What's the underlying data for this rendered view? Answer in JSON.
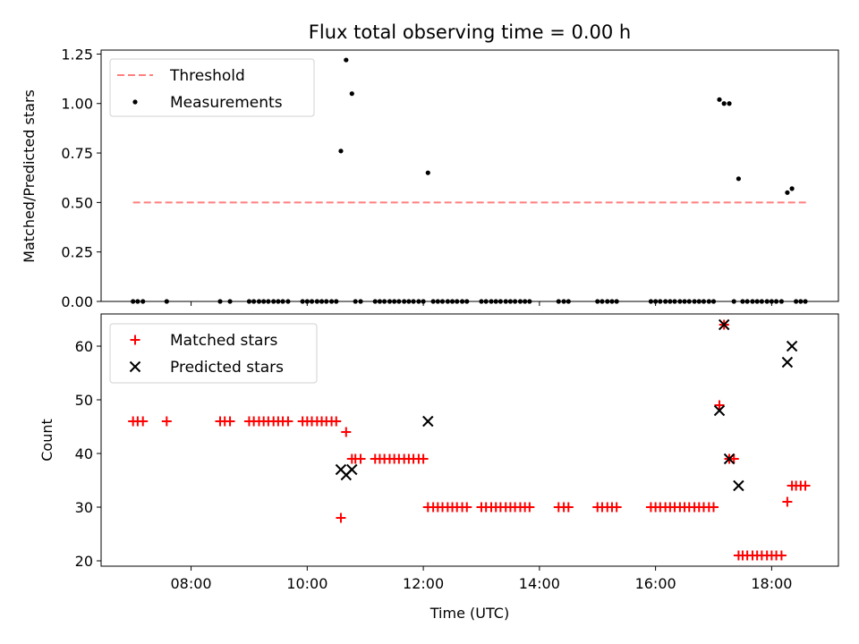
{
  "chart_data": [
    {
      "type": "scatter",
      "title": "Flux total observing time = 0.00 h",
      "ylabel": "Matched/Predicted stars",
      "ylim": [
        0,
        1.27
      ],
      "yticks": [
        0.0,
        0.25,
        0.5,
        0.75,
        1.0,
        1.25
      ],
      "ytick_labels": [
        "0.00",
        "0.25",
        "0.50",
        "0.75",
        "1.00",
        "1.25"
      ],
      "xlim_hours": [
        6.45,
        19.15
      ],
      "xticks_hours": [
        8,
        10,
        12,
        14,
        16,
        18
      ],
      "xtick_labels_shown": false,
      "legend": {
        "position": "upper-left",
        "entries": [
          "Threshold",
          "Measurements"
        ]
      },
      "threshold": {
        "name": "Threshold",
        "value": 0.5,
        "x_from": 7.0,
        "x_to": 18.6,
        "color": "#ff7f7f",
        "style": "dashed"
      },
      "series": [
        {
          "name": "Measurements",
          "marker": "dot",
          "color": "#000000",
          "points": [
            [
              7.0,
              0
            ],
            [
              7.08,
              0
            ],
            [
              7.17,
              0
            ],
            [
              7.58,
              0
            ],
            [
              8.5,
              0
            ],
            [
              8.67,
              0
            ],
            [
              9.0,
              0
            ],
            [
              9.08,
              0
            ],
            [
              9.17,
              0
            ],
            [
              9.25,
              0
            ],
            [
              9.33,
              0
            ],
            [
              9.42,
              0
            ],
            [
              9.5,
              0
            ],
            [
              9.58,
              0
            ],
            [
              9.67,
              0
            ],
            [
              9.92,
              0
            ],
            [
              10.0,
              0
            ],
            [
              10.08,
              0
            ],
            [
              10.17,
              0
            ],
            [
              10.25,
              0
            ],
            [
              10.33,
              0
            ],
            [
              10.42,
              0
            ],
            [
              10.5,
              0
            ],
            [
              10.58,
              0.76
            ],
            [
              10.67,
              1.22
            ],
            [
              10.77,
              1.05
            ],
            [
              10.83,
              0
            ],
            [
              10.92,
              0
            ],
            [
              11.17,
              0
            ],
            [
              11.25,
              0
            ],
            [
              11.33,
              0
            ],
            [
              11.42,
              0
            ],
            [
              11.5,
              0
            ],
            [
              11.58,
              0
            ],
            [
              11.67,
              0
            ],
            [
              11.75,
              0
            ],
            [
              11.83,
              0
            ],
            [
              11.92,
              0
            ],
            [
              12.0,
              0
            ],
            [
              12.08,
              0.65
            ],
            [
              12.17,
              0
            ],
            [
              12.25,
              0
            ],
            [
              12.33,
              0
            ],
            [
              12.42,
              0
            ],
            [
              12.5,
              0
            ],
            [
              12.58,
              0
            ],
            [
              12.67,
              0
            ],
            [
              12.75,
              0
            ],
            [
              13.0,
              0
            ],
            [
              13.08,
              0
            ],
            [
              13.17,
              0
            ],
            [
              13.25,
              0
            ],
            [
              13.33,
              0
            ],
            [
              13.42,
              0
            ],
            [
              13.5,
              0
            ],
            [
              13.58,
              0
            ],
            [
              13.67,
              0
            ],
            [
              13.75,
              0
            ],
            [
              13.83,
              0
            ],
            [
              14.33,
              0
            ],
            [
              14.42,
              0
            ],
            [
              14.5,
              0
            ],
            [
              15.0,
              0
            ],
            [
              15.08,
              0
            ],
            [
              15.17,
              0
            ],
            [
              15.25,
              0
            ],
            [
              15.33,
              0
            ],
            [
              15.92,
              0
            ],
            [
              16.0,
              0
            ],
            [
              16.08,
              0
            ],
            [
              16.17,
              0
            ],
            [
              16.25,
              0
            ],
            [
              16.33,
              0
            ],
            [
              16.42,
              0
            ],
            [
              16.5,
              0
            ],
            [
              16.58,
              0
            ],
            [
              16.67,
              0
            ],
            [
              16.75,
              0
            ],
            [
              16.83,
              0
            ],
            [
              16.92,
              0
            ],
            [
              17.0,
              0
            ],
            [
              17.1,
              1.02
            ],
            [
              17.18,
              1.0
            ],
            [
              17.27,
              1.0
            ],
            [
              17.35,
              0
            ],
            [
              17.43,
              0.62
            ],
            [
              17.5,
              0
            ],
            [
              17.58,
              0
            ],
            [
              17.67,
              0
            ],
            [
              17.75,
              0
            ],
            [
              17.83,
              0
            ],
            [
              17.92,
              0
            ],
            [
              18.0,
              0
            ],
            [
              18.08,
              0
            ],
            [
              18.17,
              0
            ],
            [
              18.27,
              0.55
            ],
            [
              18.35,
              0.57
            ],
            [
              18.42,
              0
            ],
            [
              18.5,
              0
            ],
            [
              18.58,
              0
            ]
          ]
        }
      ]
    },
    {
      "type": "scatter",
      "xlabel": "Time (UTC)",
      "ylabel": "Count",
      "ylim": [
        19,
        66
      ],
      "yticks": [
        20,
        30,
        40,
        50,
        60
      ],
      "ytick_labels": [
        "20",
        "30",
        "40",
        "50",
        "60"
      ],
      "xlim_hours": [
        6.45,
        19.15
      ],
      "xticks_hours": [
        8,
        10,
        12,
        14,
        16,
        18
      ],
      "xtick_labels": [
        "08:00",
        "10:00",
        "12:00",
        "14:00",
        "16:00",
        "18:00"
      ],
      "legend": {
        "position": "upper-left",
        "entries": [
          "Matched stars",
          "Predicted stars"
        ]
      },
      "series": [
        {
          "name": "Matched stars",
          "marker": "plus",
          "color": "#ff0000",
          "points": [
            [
              7.0,
              46
            ],
            [
              7.08,
              46
            ],
            [
              7.17,
              46
            ],
            [
              7.58,
              46
            ],
            [
              8.5,
              46
            ],
            [
              8.58,
              46
            ],
            [
              8.67,
              46
            ],
            [
              9.0,
              46
            ],
            [
              9.08,
              46
            ],
            [
              9.17,
              46
            ],
            [
              9.25,
              46
            ],
            [
              9.33,
              46
            ],
            [
              9.42,
              46
            ],
            [
              9.5,
              46
            ],
            [
              9.58,
              46
            ],
            [
              9.67,
              46
            ],
            [
              9.92,
              46
            ],
            [
              10.0,
              46
            ],
            [
              10.08,
              46
            ],
            [
              10.17,
              46
            ],
            [
              10.25,
              46
            ],
            [
              10.33,
              46
            ],
            [
              10.42,
              46
            ],
            [
              10.5,
              46
            ],
            [
              10.58,
              28
            ],
            [
              10.67,
              44
            ],
            [
              10.77,
              39
            ],
            [
              10.83,
              39
            ],
            [
              10.92,
              39
            ],
            [
              11.17,
              39
            ],
            [
              11.25,
              39
            ],
            [
              11.33,
              39
            ],
            [
              11.42,
              39
            ],
            [
              11.5,
              39
            ],
            [
              11.58,
              39
            ],
            [
              11.67,
              39
            ],
            [
              11.75,
              39
            ],
            [
              11.83,
              39
            ],
            [
              11.92,
              39
            ],
            [
              12.0,
              39
            ],
            [
              12.08,
              30
            ],
            [
              12.17,
              30
            ],
            [
              12.25,
              30
            ],
            [
              12.33,
              30
            ],
            [
              12.42,
              30
            ],
            [
              12.5,
              30
            ],
            [
              12.58,
              30
            ],
            [
              12.67,
              30
            ],
            [
              12.75,
              30
            ],
            [
              13.0,
              30
            ],
            [
              13.08,
              30
            ],
            [
              13.17,
              30
            ],
            [
              13.25,
              30
            ],
            [
              13.33,
              30
            ],
            [
              13.42,
              30
            ],
            [
              13.5,
              30
            ],
            [
              13.58,
              30
            ],
            [
              13.67,
              30
            ],
            [
              13.75,
              30
            ],
            [
              13.83,
              30
            ],
            [
              14.33,
              30
            ],
            [
              14.42,
              30
            ],
            [
              14.5,
              30
            ],
            [
              15.0,
              30
            ],
            [
              15.08,
              30
            ],
            [
              15.17,
              30
            ],
            [
              15.25,
              30
            ],
            [
              15.33,
              30
            ],
            [
              15.92,
              30
            ],
            [
              16.0,
              30
            ],
            [
              16.08,
              30
            ],
            [
              16.17,
              30
            ],
            [
              16.25,
              30
            ],
            [
              16.33,
              30
            ],
            [
              16.42,
              30
            ],
            [
              16.5,
              30
            ],
            [
              16.58,
              30
            ],
            [
              16.67,
              30
            ],
            [
              16.75,
              30
            ],
            [
              16.83,
              30
            ],
            [
              16.92,
              30
            ],
            [
              17.0,
              30
            ],
            [
              17.1,
              49
            ],
            [
              17.18,
              64
            ],
            [
              17.27,
              39
            ],
            [
              17.35,
              39
            ],
            [
              17.43,
              21
            ],
            [
              17.5,
              21
            ],
            [
              17.58,
              21
            ],
            [
              17.67,
              21
            ],
            [
              17.75,
              21
            ],
            [
              17.83,
              21
            ],
            [
              17.92,
              21
            ],
            [
              18.0,
              21
            ],
            [
              18.08,
              21
            ],
            [
              18.17,
              21
            ],
            [
              18.27,
              31
            ],
            [
              18.35,
              34
            ],
            [
              18.42,
              34
            ],
            [
              18.5,
              34
            ],
            [
              18.58,
              34
            ]
          ]
        },
        {
          "name": "Predicted stars",
          "marker": "cross",
          "color": "#000000",
          "points": [
            [
              10.58,
              37
            ],
            [
              10.67,
              36
            ],
            [
              10.77,
              37
            ],
            [
              12.08,
              46
            ],
            [
              17.1,
              48
            ],
            [
              17.18,
              64
            ],
            [
              17.27,
              39
            ],
            [
              17.43,
              34
            ],
            [
              18.27,
              57
            ],
            [
              18.35,
              60
            ]
          ]
        }
      ]
    }
  ]
}
